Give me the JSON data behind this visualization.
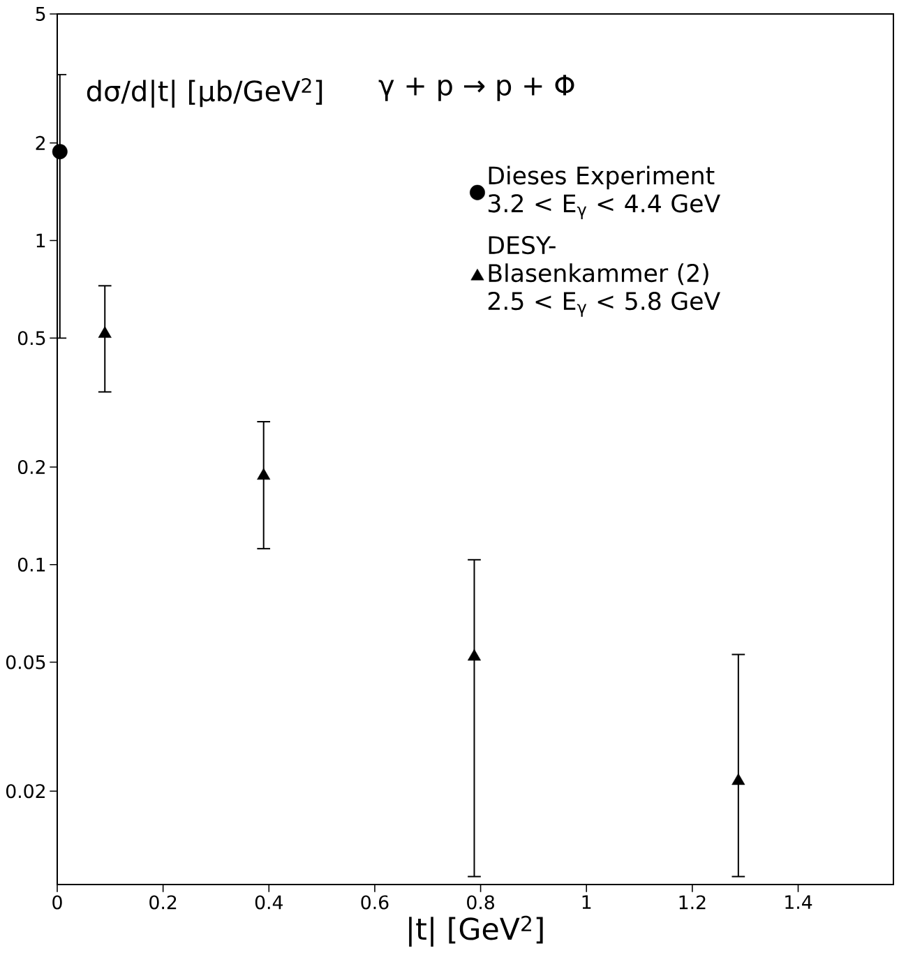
{
  "chart_data": {
    "type": "scatter",
    "xlabel": "|t| [GeV$^{2}$]",
    "ylabel": "dσ/d|t| [μb/GeV$^{2}$]",
    "annotations": [
      "γ + p → p + Φ"
    ],
    "log": "y",
    "xlim": [
      0,
      1.58
    ],
    "ylim": [
      0.0103,
      5
    ],
    "xticks": [
      0,
      0.2,
      0.4,
      0.6,
      0.8,
      1,
      1.2,
      1.4
    ],
    "yticks": [
      5,
      2,
      1,
      {
        "value": 0.5,
        "label": "0.5"
      },
      0.2,
      0.1,
      0.05,
      0.02
    ],
    "legend": "top right",
    "series": [
      {
        "name": "Dieses Experiment 3.2 < E$_{γ}$ < 4.4 GeV",
        "color": "#000000",
        "marker": "circle",
        "x": [
          0.005
        ],
        "values": [
          1.88
        ],
        "errors": [
          [
            0.5,
            3.25
          ]
        ]
      },
      {
        "name": "DESY-Blasenkammer (2) 2.5 < E$_{γ}$ < 5.8 GeV",
        "color": "#000000",
        "marker": "triangle",
        "x": [
          0.09,
          0.39,
          0.788,
          1.287
        ],
        "values": [
          0.515,
          0.188,
          0.052,
          0.0215
        ],
        "errors": [
          [
            0.341,
            0.725
          ],
          [
            0.112,
            0.276
          ],
          [
            0.0109,
            0.1035
          ],
          [
            0.0109,
            0.0528
          ]
        ]
      }
    ]
  }
}
